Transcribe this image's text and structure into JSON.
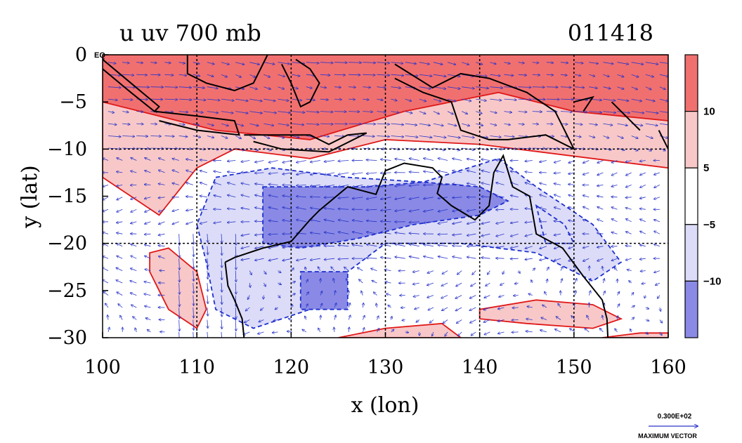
{
  "chart_data": {
    "type": "heatmap",
    "title": "u uv 700 mb",
    "timestamp": "011418",
    "xlabel": "x (lon)",
    "ylabel": "y (lat)",
    "xlim": [
      100,
      160
    ],
    "ylim": [
      -30,
      0
    ],
    "x_ticks": [
      100,
      110,
      120,
      130,
      140,
      150,
      160
    ],
    "x_tick_labels": [
      "100",
      "110",
      "120",
      "130",
      "140",
      "150",
      "160"
    ],
    "y_ticks": [
      0,
      -5,
      -10,
      -15,
      -20,
      -25,
      -30
    ],
    "y_tick_labels": [
      "0",
      "−5",
      "−10",
      "−15",
      "−20",
      "−25",
      "−30"
    ],
    "eq_label": "EQ",
    "grid_lines_lon": [
      110,
      120,
      130,
      140,
      150
    ],
    "grid_lines_lat": [
      -10,
      -20
    ],
    "colorbar": {
      "levels": [
        15,
        10,
        5,
        -5,
        -10,
        -15
      ],
      "labels": [
        "10",
        "5",
        "−5",
        "−10"
      ],
      "colors": [
        "#f07070",
        "#f8c8c8",
        "#ffffff",
        "#dcdcf8",
        "#8a8ae6"
      ]
    },
    "vector_legend": {
      "value": "0.300E+02",
      "label": "MAXIMUM VECTOR"
    },
    "regions": {
      "strong_westerly": [
        [
          [
            100,
            0
          ],
          [
            160,
            0
          ],
          [
            160,
            -7
          ],
          [
            150,
            -6
          ],
          [
            142,
            -4
          ],
          [
            132,
            -6
          ],
          [
            122,
            -9
          ],
          [
            112,
            -8
          ],
          [
            104,
            -6
          ],
          [
            100,
            -5
          ]
        ]
      ],
      "westerly": [
        [
          [
            100,
            0
          ],
          [
            160,
            0
          ],
          [
            160,
            -12
          ],
          [
            152,
            -11
          ],
          [
            140,
            -9.5
          ],
          [
            130,
            -9
          ],
          [
            122,
            -11
          ],
          [
            114,
            -10
          ],
          [
            110,
            -12
          ],
          [
            106,
            -17
          ],
          [
            103,
            -15
          ],
          [
            100,
            -13
          ]
        ],
        [
          [
            105,
            -21
          ],
          [
            107,
            -20.5
          ],
          [
            110,
            -23
          ],
          [
            111,
            -27
          ],
          [
            110,
            -29
          ],
          [
            107,
            -27
          ],
          [
            105,
            -23
          ]
        ],
        [
          [
            140,
            -27
          ],
          [
            146,
            -26
          ],
          [
            152,
            -26.5
          ],
          [
            155,
            -28
          ],
          [
            152,
            -29
          ],
          [
            145,
            -28.5
          ],
          [
            140,
            -28
          ]
        ],
        [
          [
            125,
            -30
          ],
          [
            130,
            -29
          ],
          [
            136,
            -28.5
          ],
          [
            138,
            -30
          ]
        ],
        [
          [
            153,
            -30
          ],
          [
            157,
            -29.5
          ],
          [
            160,
            -29.5
          ],
          [
            160,
            -30
          ]
        ]
      ],
      "easterly": [
        [
          [
            112,
            -13
          ],
          [
            118,
            -12
          ],
          [
            126,
            -13
          ],
          [
            134,
            -13.5
          ],
          [
            142,
            -11
          ],
          [
            146,
            -14
          ],
          [
            152,
            -18
          ],
          [
            155,
            -22
          ],
          [
            152,
            -24
          ],
          [
            146,
            -21
          ],
          [
            138,
            -20
          ],
          [
            130,
            -20
          ],
          [
            126,
            -23
          ],
          [
            122,
            -27
          ],
          [
            116,
            -29
          ],
          [
            112,
            -27
          ],
          [
            111,
            -22
          ],
          [
            110,
            -18
          ]
        ],
        [
          [
            146,
            -16
          ],
          [
            149,
            -18
          ],
          [
            150,
            -20
          ],
          [
            147,
            -20
          ]
        ]
      ],
      "strong_easterly": [
        [
          [
            117,
            -14
          ],
          [
            123,
            -14
          ],
          [
            128,
            -14
          ],
          [
            134,
            -13.5
          ],
          [
            140,
            -14
          ],
          [
            143,
            -15.5
          ],
          [
            140,
            -17
          ],
          [
            133,
            -18
          ],
          [
            127,
            -19.5
          ],
          [
            121,
            -20.5
          ],
          [
            117,
            -20
          ]
        ],
        [
          [
            121,
            -23
          ],
          [
            126,
            -23
          ],
          [
            126,
            -27
          ],
          [
            121,
            -27
          ]
        ]
      ]
    },
    "coastlines": [
      [
        [
          100,
          -0.5
        ],
        [
          103,
          -3
        ],
        [
          106,
          -5.5
        ],
        [
          105.5,
          -6
        ],
        [
          103,
          -4
        ],
        [
          100,
          -1.5
        ]
      ],
      [
        [
          105.5,
          -6
        ],
        [
          110,
          -6.5
        ],
        [
          114,
          -7
        ],
        [
          114.5,
          -8.5
        ],
        [
          110,
          -8
        ],
        [
          106,
          -7
        ]
      ],
      [
        [
          109,
          0
        ],
        [
          109,
          -2
        ],
        [
          111,
          -3
        ],
        [
          114,
          -3.8
        ],
        [
          116,
          -3
        ],
        [
          117,
          -1
        ],
        [
          117.5,
          0
        ]
      ],
      [
        [
          119,
          -1
        ],
        [
          120,
          -3
        ],
        [
          121,
          -5.5
        ],
        [
          122,
          -5
        ],
        [
          123,
          -3
        ],
        [
          122,
          -1.5
        ],
        [
          120.5,
          -0.5
        ]
      ],
      [
        [
          115,
          -8.5
        ],
        [
          119,
          -8.5
        ],
        [
          122,
          -8.5
        ],
        [
          124,
          -9.5
        ],
        [
          126,
          -8.5
        ],
        [
          128,
          -8.3
        ],
        [
          124,
          -10.3
        ],
        [
          119,
          -10
        ],
        [
          116,
          -9.2
        ]
      ],
      [
        [
          131,
          -1
        ],
        [
          135,
          -3.5
        ],
        [
          138,
          -2
        ],
        [
          141,
          -2.5
        ],
        [
          145,
          -4
        ],
        [
          148,
          -6
        ],
        [
          150,
          -10
        ],
        [
          147,
          -8.5
        ],
        [
          143,
          -9
        ],
        [
          141,
          -9
        ],
        [
          138,
          -8
        ],
        [
          137,
          -5
        ],
        [
          134,
          -4
        ],
        [
          131,
          -2.5
        ]
      ],
      [
        [
          150,
          -5
        ],
        [
          152,
          -4.5
        ],
        [
          151,
          -6
        ]
      ],
      [
        [
          154,
          -5
        ],
        [
          155.5,
          -6.5
        ],
        [
          157,
          -8
        ]
      ],
      [
        [
          159,
          -8
        ],
        [
          160,
          -10
        ]
      ],
      [
        [
          113,
          -22
        ],
        [
          114,
          -21.5
        ],
        [
          117,
          -20.5
        ],
        [
          120,
          -19.8
        ],
        [
          122,
          -17.5
        ],
        [
          123,
          -16.5
        ],
        [
          126,
          -14
        ],
        [
          129,
          -14.8
        ],
        [
          130,
          -12.3
        ],
        [
          132,
          -11.5
        ],
        [
          135,
          -12
        ],
        [
          136,
          -13
        ],
        [
          135.5,
          -14.7
        ],
        [
          137,
          -16
        ],
        [
          139.5,
          -17.5
        ],
        [
          141,
          -16
        ],
        [
          141.5,
          -12.5
        ],
        [
          142.5,
          -10.7
        ],
        [
          143.5,
          -14
        ],
        [
          145.3,
          -15
        ],
        [
          146,
          -19
        ],
        [
          148.8,
          -20.5
        ],
        [
          151,
          -23.5
        ],
        [
          153,
          -26
        ],
        [
          153.5,
          -28
        ],
        [
          153.6,
          -30
        ]
      ],
      [
        [
          113,
          -22
        ],
        [
          113.3,
          -24.5
        ],
        [
          114,
          -26
        ],
        [
          114.8,
          -28
        ],
        [
          115,
          -30
        ]
      ]
    ]
  }
}
